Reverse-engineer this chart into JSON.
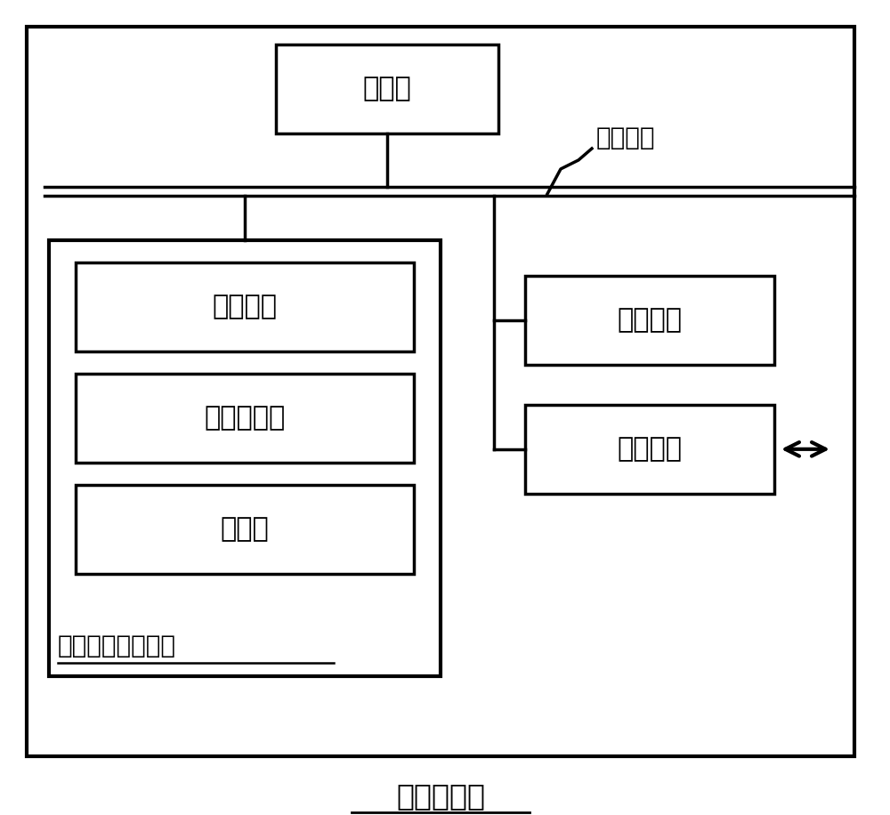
{
  "bg_color": "#ffffff",
  "line_color": "#000000",
  "title": "计算机设备",
  "processor_label": "处理器",
  "nonvolatile_label": "非易失性存储介质",
  "os_label": "操作系统",
  "program_label": "计算机程序",
  "database_label": "数据库",
  "memory_label": "内存储器",
  "network_label": "网络接口",
  "bus_label": "系统总线",
  "font_size_large": 22,
  "font_size_medium": 20,
  "font_size_small": 17,
  "font_size_title": 24
}
